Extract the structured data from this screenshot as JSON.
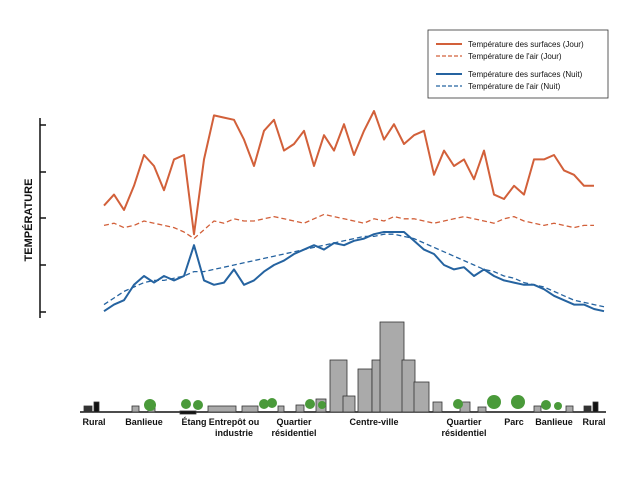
{
  "chart_data": {
    "type": "line",
    "ylabel": "TEMPÉRATURE",
    "ylim": [
      0,
      100
    ],
    "legend": "top-right",
    "categories": [
      null,
      "Rural",
      null,
      null,
      null,
      null,
      "Banlieue",
      null,
      null,
      null,
      null,
      "Étang",
      null,
      null,
      null,
      "Entrepôt ou\nindustrie",
      null,
      null,
      null,
      null,
      null,
      "Quartier\nrésidentiel",
      null,
      null,
      null,
      null,
      null,
      null,
      null,
      "Centre-ville",
      null,
      null,
      null,
      null,
      null,
      null,
      null,
      null,
      "Quartier\nrésidentiel",
      null,
      null,
      null,
      null,
      "Parc",
      null,
      null,
      null,
      "Banlieue",
      null,
      null,
      null,
      "Rural",
      null
    ],
    "series": [
      {
        "name": "Température des surfaces (Jour)",
        "color": "#d2603a",
        "dash": false,
        "values": [
          null,
          null,
          52,
          57,
          50,
          61,
          75,
          70,
          59,
          73,
          75,
          39,
          73,
          93,
          92,
          91,
          82,
          70,
          86,
          91,
          77,
          80,
          86,
          70,
          84,
          77,
          89,
          75,
          86,
          95,
          82,
          89,
          80,
          84,
          86,
          66,
          77,
          70,
          73,
          64,
          77,
          57,
          55,
          61,
          57,
          73,
          73,
          75,
          68,
          66,
          61,
          61,
          null
        ]
      },
      {
        "name": "Température de l'air (Jour)",
        "color": "#d2603a",
        "dash": true,
        "values": [
          null,
          null,
          43,
          44,
          42,
          43,
          45,
          44,
          43,
          42,
          40,
          37,
          41,
          45,
          44,
          46,
          45,
          45,
          46,
          47,
          46,
          45,
          44,
          46,
          48,
          47,
          46,
          45,
          44,
          46,
          45,
          47,
          46,
          46,
          45,
          44,
          45,
          46,
          47,
          46,
          45,
          44,
          46,
          47,
          45,
          44,
          43,
          44,
          43,
          42,
          43,
          43,
          null
        ]
      },
      {
        "name": "Température des surfaces (Nuit)",
        "color": "#2563a0",
        "dash": false,
        "values": [
          null,
          null,
          4,
          7,
          9,
          16,
          20,
          17,
          20,
          18,
          20,
          34,
          18,
          16,
          17,
          23,
          16,
          18,
          22,
          25,
          27,
          30,
          32,
          34,
          32,
          35,
          34,
          36,
          37,
          39,
          40,
          40,
          40,
          36,
          32,
          30,
          25,
          23,
          24,
          20,
          23,
          20,
          18,
          17,
          16,
          16,
          14,
          11,
          9,
          7,
          7,
          5,
          4
        ]
      },
      {
        "name": "Température de l'air (Nuit)",
        "color": "#2563a0",
        "dash": true,
        "values": [
          null,
          null,
          7,
          10,
          13,
          15,
          17,
          18,
          18,
          19,
          20,
          22,
          22,
          23,
          24,
          25,
          26,
          27,
          28,
          29,
          30,
          31,
          32,
          33,
          34,
          35,
          36,
          37,
          38,
          38,
          39,
          39,
          38,
          37,
          35,
          33,
          31,
          29,
          27,
          25,
          23,
          22,
          20,
          19,
          17,
          16,
          15,
          13,
          11,
          9,
          8,
          7,
          6
        ]
      }
    ]
  }
}
